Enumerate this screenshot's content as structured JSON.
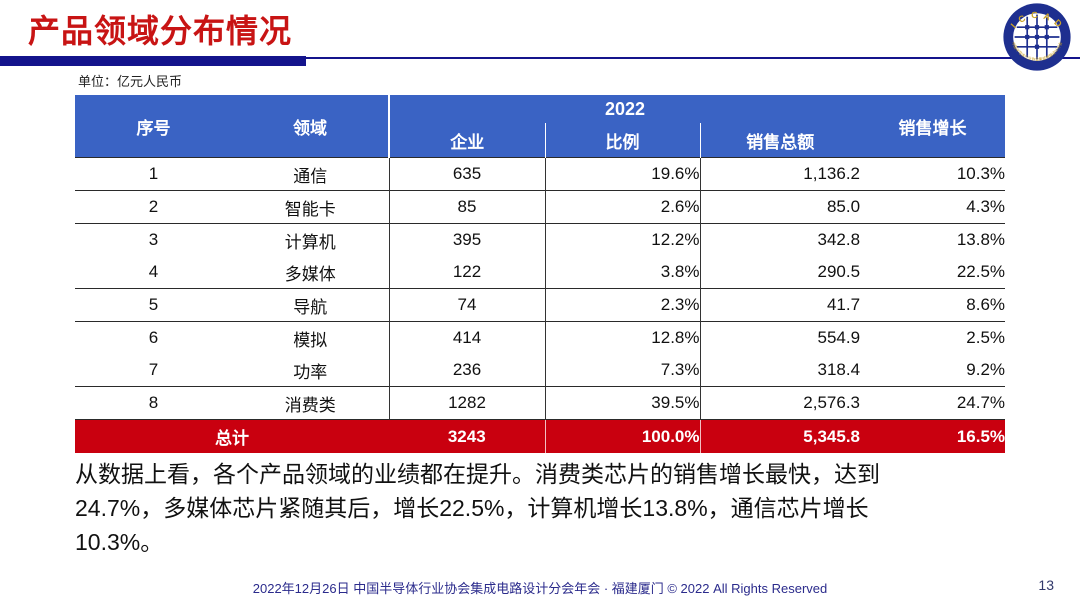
{
  "title": "产品领域分布情况",
  "unit_label": "单位：亿元人民币",
  "logo": {
    "top_text": "I C C A D",
    "bottom_text": "中国半导体行业协会集成电路设计分会"
  },
  "table": {
    "header": {
      "col_no": "序号",
      "col_field": "领域",
      "year_group": "2022",
      "col_companies": "企业",
      "col_share": "比例",
      "col_sales": "销售总额",
      "col_growth": "销售增长"
    },
    "rows": [
      {
        "no": "1",
        "field": "通信",
        "companies": "635",
        "share": "19.6%",
        "sales": "1,136.2",
        "growth": "10.3%"
      },
      {
        "no": "2",
        "field": "智能卡",
        "companies": "85",
        "share": "2.6%",
        "sales": "85.0",
        "growth": "4.3%"
      },
      {
        "no": "3",
        "field": "计算机",
        "companies": "395",
        "share": "12.2%",
        "sales": "342.8",
        "growth": "13.8%"
      },
      {
        "no": "4",
        "field": "多媒体",
        "companies": "122",
        "share": "3.8%",
        "sales": "290.5",
        "growth": "22.5%"
      },
      {
        "no": "5",
        "field": "导航",
        "companies": "74",
        "share": "2.3%",
        "sales": "41.7",
        "growth": "8.6%"
      },
      {
        "no": "6",
        "field": "模拟",
        "companies": "414",
        "share": "12.8%",
        "sales": "554.9",
        "growth": "2.5%"
      },
      {
        "no": "7",
        "field": "功率",
        "companies": "236",
        "share": "7.3%",
        "sales": "318.4",
        "growth": "9.2%"
      },
      {
        "no": "8",
        "field": "消费类",
        "companies": "1282",
        "share": "39.5%",
        "sales": "2,576.3",
        "growth": "24.7%"
      }
    ],
    "total": {
      "label": "总计",
      "companies": "3243",
      "share": "100.0%",
      "sales": "5,345.8",
      "growth": "16.5%"
    }
  },
  "paragraph_lines": [
    "从数据上看，各个产品领域的业绩都在提升。消费类芯片的销售增长最快，达到",
    "24.7%，多媒体芯片紧随其后，增长22.5%，计算机增长13.8%，通信芯片增长",
    "10.3%。"
  ],
  "footer": {
    "text": "2022年12月26日 中国半导体行业协会集成电路设计分会年会 · 福建厦门 © 2022 All Rights Reserved",
    "page": "13"
  },
  "colors": {
    "title_red": "#c81414",
    "navy_bar": "#14148c",
    "header_blue": "#3a63c4",
    "total_red": "#c9000f",
    "footer_navy": "#2b2b8c",
    "logo_gold": "#c9a227",
    "logo_navy": "#1e2f8f"
  }
}
